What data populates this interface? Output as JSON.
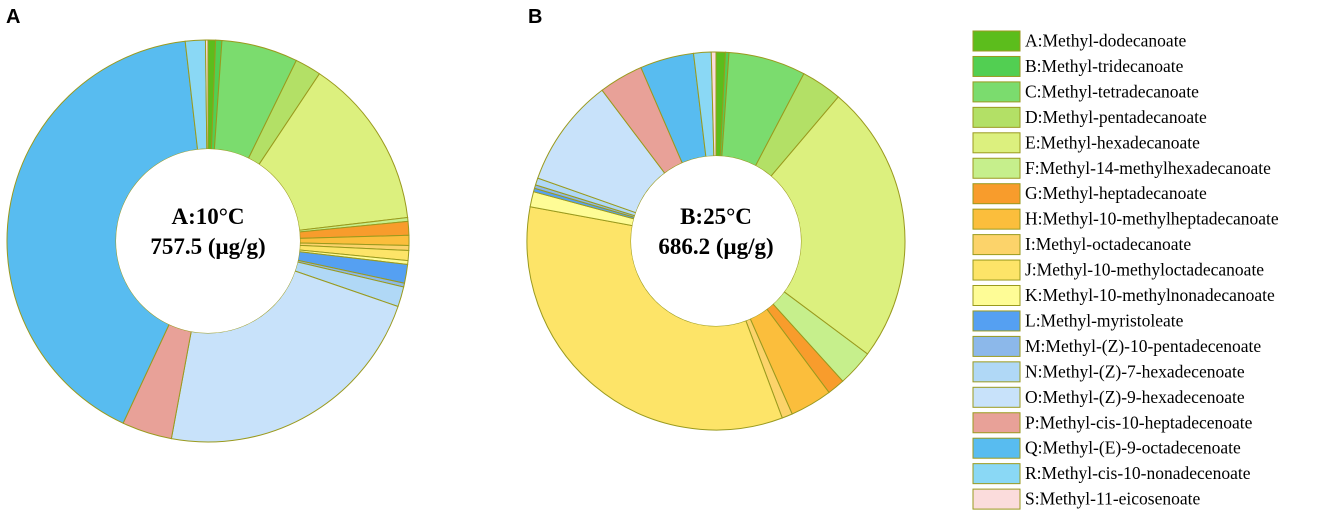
{
  "chart_data": {
    "type": "pie",
    "legend_position": "right",
    "legend": [
      {
        "key": "A",
        "label": "A:Methyl-dodecanoate",
        "color": "#5cbd1c"
      },
      {
        "key": "B",
        "label": "B:Methyl-tridecanoate",
        "color": "#52cf52"
      },
      {
        "key": "C",
        "label": "C:Methyl-tetradecanoate",
        "color": "#7bdc6e"
      },
      {
        "key": "D",
        "label": "D:Methyl-pentadecanoate",
        "color": "#b3e066"
      },
      {
        "key": "E",
        "label": "E:Methyl-hexadecanoate",
        "color": "#dcf07e"
      },
      {
        "key": "F",
        "label": "F:Methyl-14-methylhexadecanoate",
        "color": "#c6ef8c"
      },
      {
        "key": "G",
        "label": "G:Methyl-heptadecanoate",
        "color": "#f89c2c"
      },
      {
        "key": "H",
        "label": "H:Methyl-10-methylheptadecanoate",
        "color": "#fbbe3c"
      },
      {
        "key": "I",
        "label": "I:Methyl-octadecanoate",
        "color": "#fcd36a"
      },
      {
        "key": "J",
        "label": "J:Methyl-10-methyloctadecanoate",
        "color": "#fde468"
      },
      {
        "key": "K",
        "label": "K:Methyl-10-methylnonadecanoate",
        "color": "#fefc96"
      },
      {
        "key": "L",
        "label": "L:Methyl-myristoleate",
        "color": "#55a0f2"
      },
      {
        "key": "M",
        "label": "M:Methyl-(Z)-10-pentadecenoate",
        "color": "#8cb8ea"
      },
      {
        "key": "N",
        "label": "N:Methyl-(Z)-7-hexadecenoate",
        "color": "#b0d8f6"
      },
      {
        "key": "O",
        "label": "O:Methyl-(Z)-9-hexadecenoate",
        "color": "#c8e2fa"
      },
      {
        "key": "P",
        "label": "P:Methyl-cis-10-heptadecenoate",
        "color": "#e8a198"
      },
      {
        "key": "Q",
        "label": "Q:Methyl-(E)-9-octadecenoate",
        "color": "#58bcf0"
      },
      {
        "key": "R",
        "label": "R:Methyl-cis-10-nonadecenoate",
        "color": "#8ad8f5"
      },
      {
        "key": "S",
        "label": "S:Methyl-11-eicosenoate",
        "color": "#fbdcdc"
      }
    ],
    "charts": [
      {
        "panel": "A",
        "center_label": "A:10°C",
        "center_value": "757.5 (μg/g)",
        "values": [
          0.6,
          0.5,
          6.1,
          2.1,
          13.7,
          0.3,
          1.1,
          0.8,
          0.4,
          0.8,
          0.3,
          1.5,
          0.3,
          1.6,
          22.5,
          4.0,
          41.0,
          1.6,
          0.2
        ]
      },
      {
        "panel": "B",
        "center_label": "B:25°C",
        "center_value": "686.2 (μg/g)",
        "values": [
          0.8,
          0.3,
          6.6,
          3.5,
          24.0,
          3.1,
          1.5,
          3.6,
          0.9,
          33.6,
          1.3,
          0.3,
          0.3,
          0.6,
          9.3,
          3.8,
          4.6,
          1.5,
          0.4
        ]
      }
    ]
  }
}
